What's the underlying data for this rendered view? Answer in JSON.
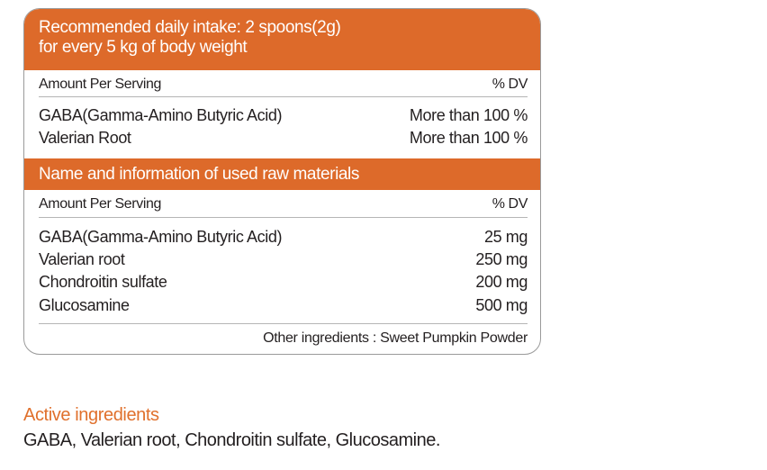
{
  "header": {
    "line1": "Recommended daily intake: 2 spoons(2g)",
    "line2": "for every 5 kg of body weight"
  },
  "section1": {
    "col_left": "Amount Per Serving",
    "col_right": "% DV",
    "rows": [
      {
        "name": "GABA(Gamma-Amino Butyric Acid)",
        "value": "More than 100 %"
      },
      {
        "name": "Valerian Root",
        "value": "More than 100 %"
      }
    ]
  },
  "section2": {
    "title": "Name and information of used raw materials",
    "col_left": "Amount Per Serving",
    "col_right": "% DV",
    "rows": [
      {
        "name": "GABA(Gamma-Amino Butyric Acid)",
        "value": "25 mg"
      },
      {
        "name": "Valerian root",
        "value": "250 mg"
      },
      {
        "name": "Chondroitin sulfate",
        "value": "200 mg"
      },
      {
        "name": "Glucosamine",
        "value": "500 mg"
      }
    ],
    "other": "Other ingredients : Sweet Pumpkin Powder"
  },
  "active": {
    "heading": "Active ingredients",
    "text": "GABA, Valerian root, Chondroitin sulfate, Glucosamine."
  },
  "colors": {
    "accent": "#dd6a2a"
  }
}
